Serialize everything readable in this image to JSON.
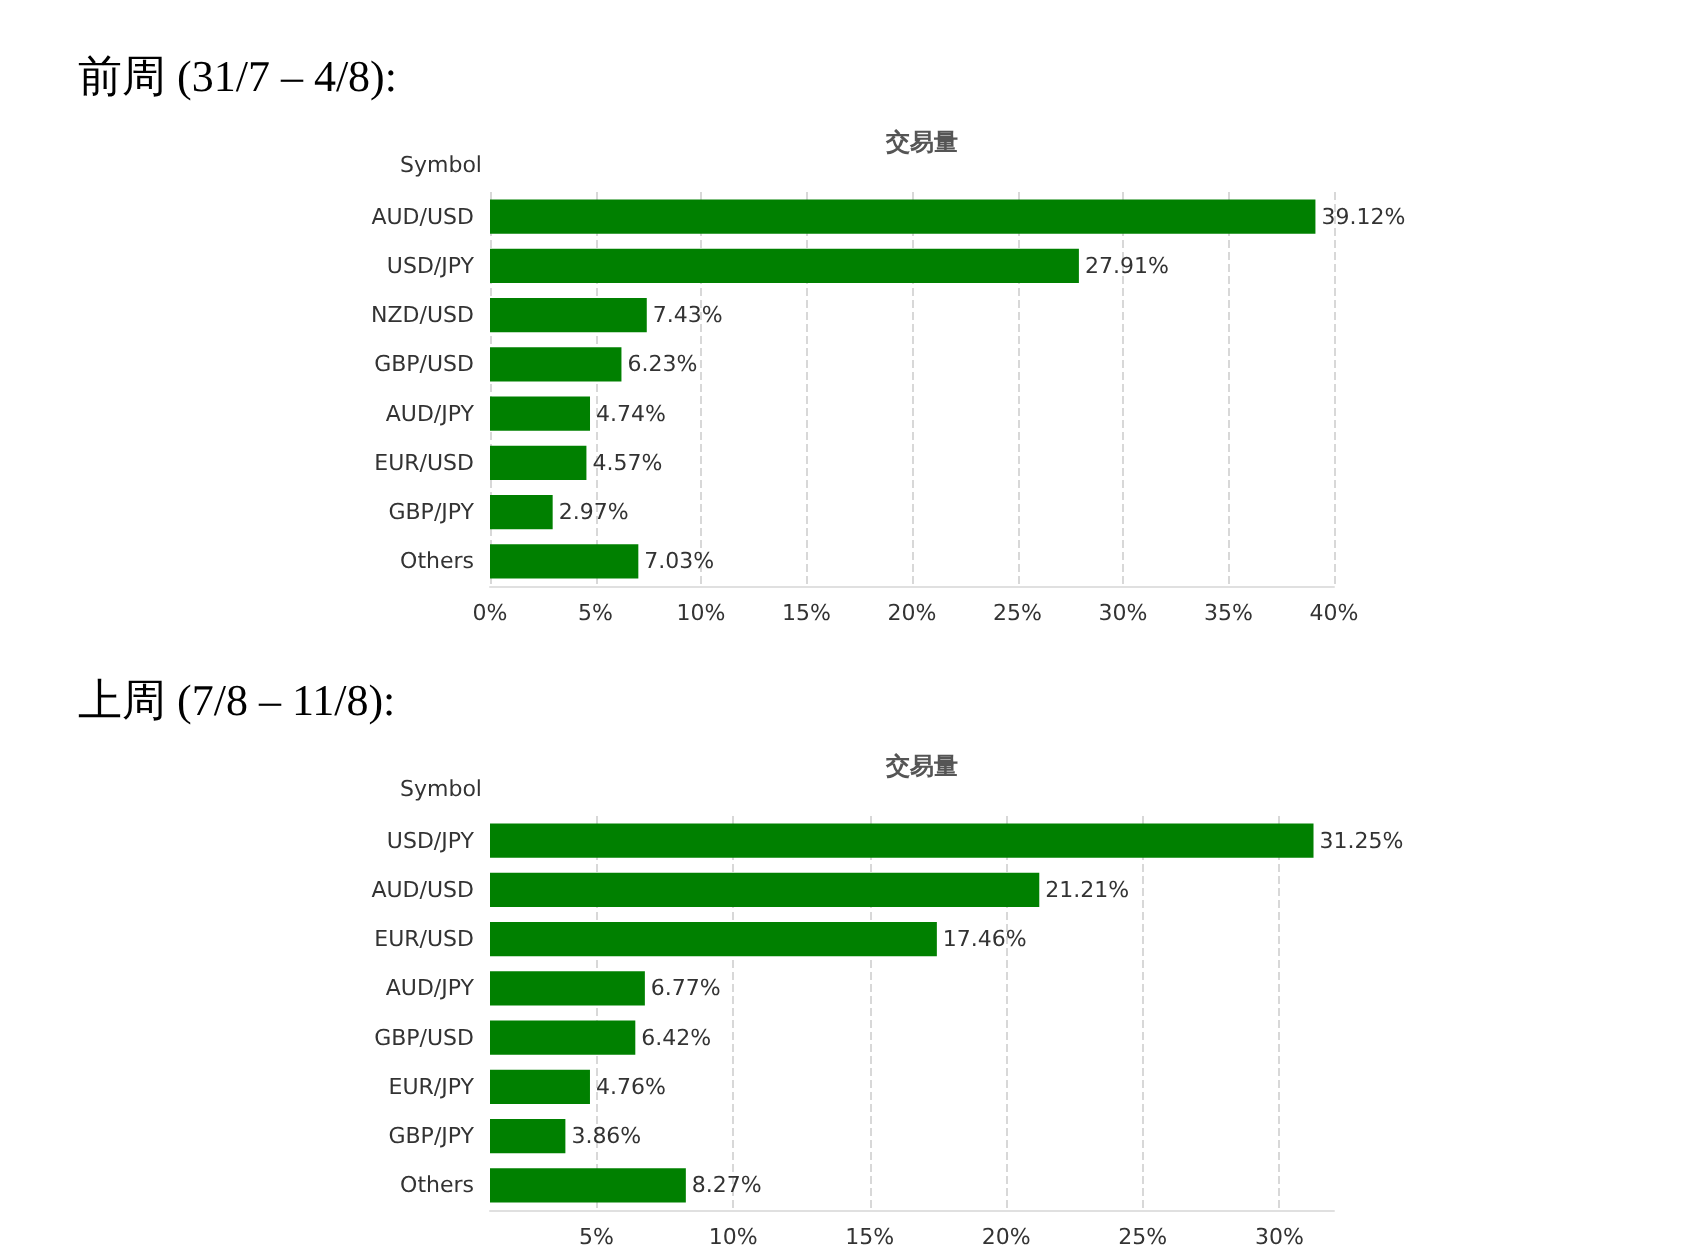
{
  "chart_data": [
    {
      "type": "bar",
      "orientation": "horizontal",
      "title": "前周 (31/7 – 4/8):",
      "subtitle": "交易量",
      "ylabel": "Symbol",
      "categories": [
        "AUD/USD",
        "USD/JPY",
        "NZD/USD",
        "GBP/USD",
        "AUD/JPY",
        "EUR/USD",
        "GBP/JPY",
        "Others"
      ],
      "values": [
        39.12,
        27.91,
        7.43,
        6.23,
        4.74,
        4.57,
        2.97,
        7.03
      ],
      "value_labels": [
        "39.12%",
        "27.91%",
        "7.43%",
        "6.23%",
        "4.74%",
        "4.57%",
        "2.97%",
        "7.03%"
      ],
      "color": "#008000",
      "xlim": [
        0,
        40
      ],
      "xticks": [
        {
          "value": 0,
          "label": "0%"
        },
        {
          "value": 5,
          "label": "5%"
        },
        {
          "value": 10,
          "label": "10%"
        },
        {
          "value": 15,
          "label": "15%"
        },
        {
          "value": 20,
          "label": "20%"
        },
        {
          "value": 25,
          "label": "25%"
        },
        {
          "value": 30,
          "label": "30%"
        },
        {
          "value": 35,
          "label": "35%"
        },
        {
          "value": 40,
          "label": "40%"
        }
      ],
      "grid": "x"
    },
    {
      "type": "bar",
      "orientation": "horizontal",
      "title": "上周 (7/8 – 11/8):",
      "subtitle": "交易量",
      "ylabel": "Symbol",
      "categories": [
        "USD/JPY",
        "AUD/USD",
        "EUR/USD",
        "AUD/JPY",
        "GBP/USD",
        "EUR/JPY",
        "GBP/JPY",
        "Others"
      ],
      "values": [
        31.25,
        21.21,
        17.46,
        6.77,
        6.42,
        4.76,
        3.86,
        8.27
      ],
      "value_labels": [
        "31.25%",
        "21.21%",
        "17.46%",
        "6.77%",
        "6.42%",
        "4.76%",
        "3.86%",
        "8.27%"
      ],
      "color": "#008000",
      "xlim": [
        1.1,
        32
      ],
      "xticks": [
        {
          "value": 5,
          "label": "5%"
        },
        {
          "value": 10,
          "label": "10%"
        },
        {
          "value": 15,
          "label": "15%"
        },
        {
          "value": 20,
          "label": "20%"
        },
        {
          "value": 25,
          "label": "25%"
        },
        {
          "value": 30,
          "label": "30%"
        }
      ],
      "grid": "x"
    }
  ]
}
